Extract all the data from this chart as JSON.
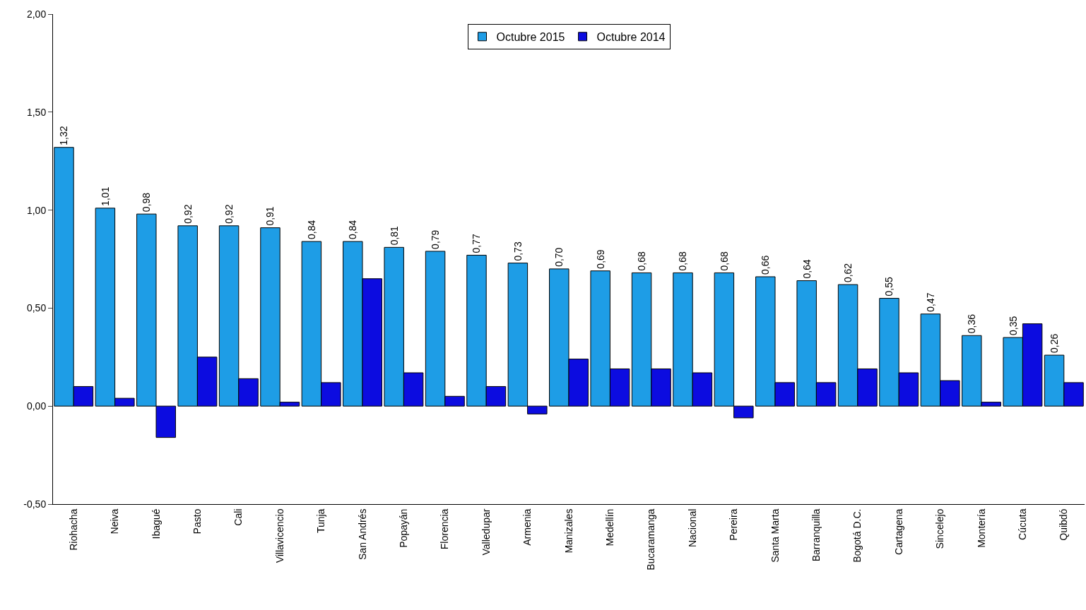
{
  "chart_data": {
    "type": "bar",
    "categories": [
      "Riohacha",
      "Neiva",
      "Ibagué",
      "Pasto",
      "Cali",
      "Villavicencio",
      "Tunja",
      "San Andrés",
      "Popayán",
      "Florencia",
      "Valledupar",
      "Armenia",
      "Manizales",
      "Medellín",
      "Bucaramanga",
      "Nacional",
      "Pereira",
      "Santa Marta",
      "Barranquilla",
      "Bogotá D.C.",
      "Cartagena",
      "Sincelejo",
      "Montería",
      "Cúcuta",
      "Quibdó"
    ],
    "series": [
      {
        "name": "Octubre 2015",
        "color": "#1e9de6",
        "values": [
          1.32,
          1.01,
          0.98,
          0.92,
          0.92,
          0.91,
          0.84,
          0.84,
          0.81,
          0.79,
          0.77,
          0.73,
          0.7,
          0.69,
          0.68,
          0.68,
          0.68,
          0.66,
          0.64,
          0.62,
          0.55,
          0.47,
          0.36,
          0.35,
          0.26
        ],
        "value_labels": [
          "1,32",
          "1,01",
          "0,98",
          "0,92",
          "0,92",
          "0,91",
          "0,84",
          "0,84",
          "0,81",
          "0,79",
          "0,77",
          "0,73",
          "0,70",
          "0,69",
          "0,68",
          "0,68",
          "0,68",
          "0,66",
          "0,64",
          "0,62",
          "0,55",
          "0,47",
          "0,36",
          "0,35",
          "0,26"
        ]
      },
      {
        "name": "Octubre 2014",
        "color": "#0c0ce0",
        "values": [
          0.1,
          0.04,
          -0.16,
          0.25,
          0.14,
          0.02,
          0.12,
          0.65,
          0.17,
          0.05,
          0.1,
          -0.04,
          0.24,
          0.19,
          0.19,
          0.17,
          -0.06,
          0.12,
          0.12,
          0.19,
          0.17,
          0.13,
          0.02,
          0.42,
          0.12
        ]
      }
    ],
    "ylim": [
      -0.5,
      2.0
    ],
    "yticks": [
      {
        "value": -0.5,
        "label": "-0,50"
      },
      {
        "value": 0,
        "label": "0,00"
      },
      {
        "value": 0.5,
        "label": "0,50"
      },
      {
        "value": 1.0,
        "label": "1,00"
      },
      {
        "value": 1.5,
        "label": "1,50"
      },
      {
        "value": 2.0,
        "label": "2,00"
      }
    ],
    "grid": false,
    "legend": "top"
  }
}
